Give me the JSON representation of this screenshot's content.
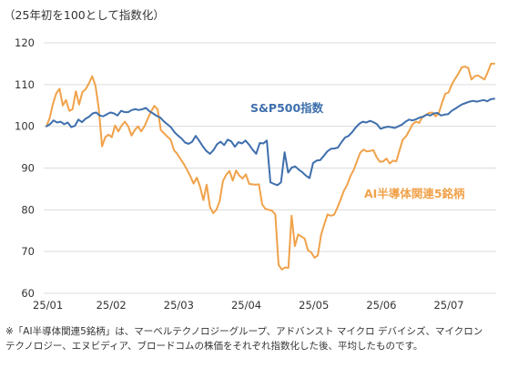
{
  "chart_data": {
    "type": "line",
    "subtitle": "（25年初を100として指数化）",
    "x_ticks": [
      "25/01",
      "25/02",
      "25/03",
      "25/04",
      "25/05",
      "25/06",
      "25/07"
    ],
    "ylim": [
      60,
      120
    ],
    "y_ticks": [
      60,
      70,
      80,
      90,
      100,
      110,
      120
    ],
    "grid": true,
    "legend": "inline labels",
    "series": [
      {
        "name": "S&P500指数",
        "color": "#3f6fad",
        "values": [
          100,
          100.5,
          101.4,
          100.9,
          101.1,
          100.5,
          100.9,
          99.8,
          100.1,
          101.6,
          101.0,
          101.8,
          102.3,
          103.1,
          103.3,
          102.6,
          102.4,
          102.9,
          103.3,
          103.1,
          102.6,
          103.7,
          103.4,
          103.4,
          103.9,
          104.1,
          103.9,
          104.1,
          104.4,
          103.6,
          103.1,
          102.5,
          102.1,
          101.2,
          100.5,
          99.8,
          98.6,
          97.8,
          97.1,
          96.1,
          95.8,
          96.3,
          97.7,
          96.5,
          95.2,
          94.1,
          93.4,
          94.3,
          95.7,
          96.3,
          95.5,
          96.8,
          96.4,
          95.1,
          96.2,
          95.9,
          96.6,
          95.6,
          94.4,
          93.4,
          96.0,
          95.9,
          96.6,
          86.6,
          86.2,
          85.9,
          86.6,
          93.8,
          88.9,
          90.1,
          90.4,
          89.6,
          89.0,
          88.2,
          87.6,
          91.2,
          91.8,
          91.9,
          92.9,
          94.0,
          94.6,
          94.7,
          94.9,
          96.2,
          97.3,
          97.7,
          98.6,
          99.7,
          100.6,
          101.1,
          100.9,
          101.3,
          101.0,
          100.5,
          99.4,
          99.7,
          99.9,
          99.8,
          99.6,
          100.0,
          100.4,
          101.1,
          101.6,
          101.4,
          101.7,
          102.1,
          102.3,
          102.8,
          102.6,
          103.1,
          103.2,
          102.6,
          102.8,
          102.9,
          103.7,
          104.2,
          104.8,
          105.3,
          105.6,
          105.9,
          106.1,
          105.9,
          106.1,
          106.3,
          106.0,
          106.5,
          106.6
        ]
      },
      {
        "name": "AI半導体関連5銘柄",
        "color": "#f0a24a",
        "values": [
          100,
          102.0,
          105.4,
          107.9,
          109.0,
          105.0,
          106.3,
          103.7,
          104.1,
          108.4,
          105.2,
          108.2,
          108.9,
          110.3,
          112.0,
          109.7,
          104.2,
          95.2,
          97.4,
          98.0,
          97.4,
          100.2,
          98.8,
          100.2,
          101.1,
          100.0,
          97.8,
          99.1,
          100.0,
          98.8,
          100.0,
          101.8,
          103.5,
          104.9,
          104.1,
          99.1,
          98.3,
          97.5,
          96.8,
          94.3,
          93.4,
          92.2,
          91.0,
          89.6,
          88.1,
          86.3,
          87.7,
          85.5,
          82.3,
          86.0,
          80.7,
          79.2,
          80.0,
          82.1,
          86.9,
          88.4,
          89.3,
          87.0,
          89.4,
          88.2,
          87.5,
          88.5,
          86.2,
          86.1,
          86.0,
          86.1,
          81.3,
          80.2,
          80.0,
          79.8,
          78.9,
          66.8,
          65.7,
          66.2,
          66.1,
          78.6,
          71.3,
          74.1,
          73.6,
          73.1,
          70.3,
          69.8,
          68.5,
          69.1,
          74.0,
          76.6,
          78.9,
          78.6,
          78.8,
          80.5,
          82.5,
          84.6,
          86.0,
          88.1,
          89.6,
          91.7,
          93.7,
          94.4,
          94.0,
          94.1,
          94.3,
          92.6,
          91.5,
          91.6,
          92.3,
          91.1,
          91.8,
          91.6,
          94.3,
          96.8,
          97.6,
          99.0,
          100.5,
          101.1,
          100.8,
          102.3,
          102.7,
          103.2,
          103.3,
          102.4,
          103.1,
          105.6,
          107.8,
          108.1,
          110.0,
          111.4,
          112.6,
          114.1,
          114.3,
          114.0,
          111.2,
          112.0,
          112.2,
          111.7,
          111.2,
          113.0,
          115.0,
          115.0
        ]
      }
    ]
  },
  "footnote": {
    "line1": "※「AI半導体関連5銘柄」は、マーベルテクノロジーグループ、アドバンスト マイクロ デバイシズ、マイクロン",
    "line2": "テクノロジー、エヌビディア、ブロードコムの株価をそれぞれ指数化した後、平均したものです。"
  }
}
